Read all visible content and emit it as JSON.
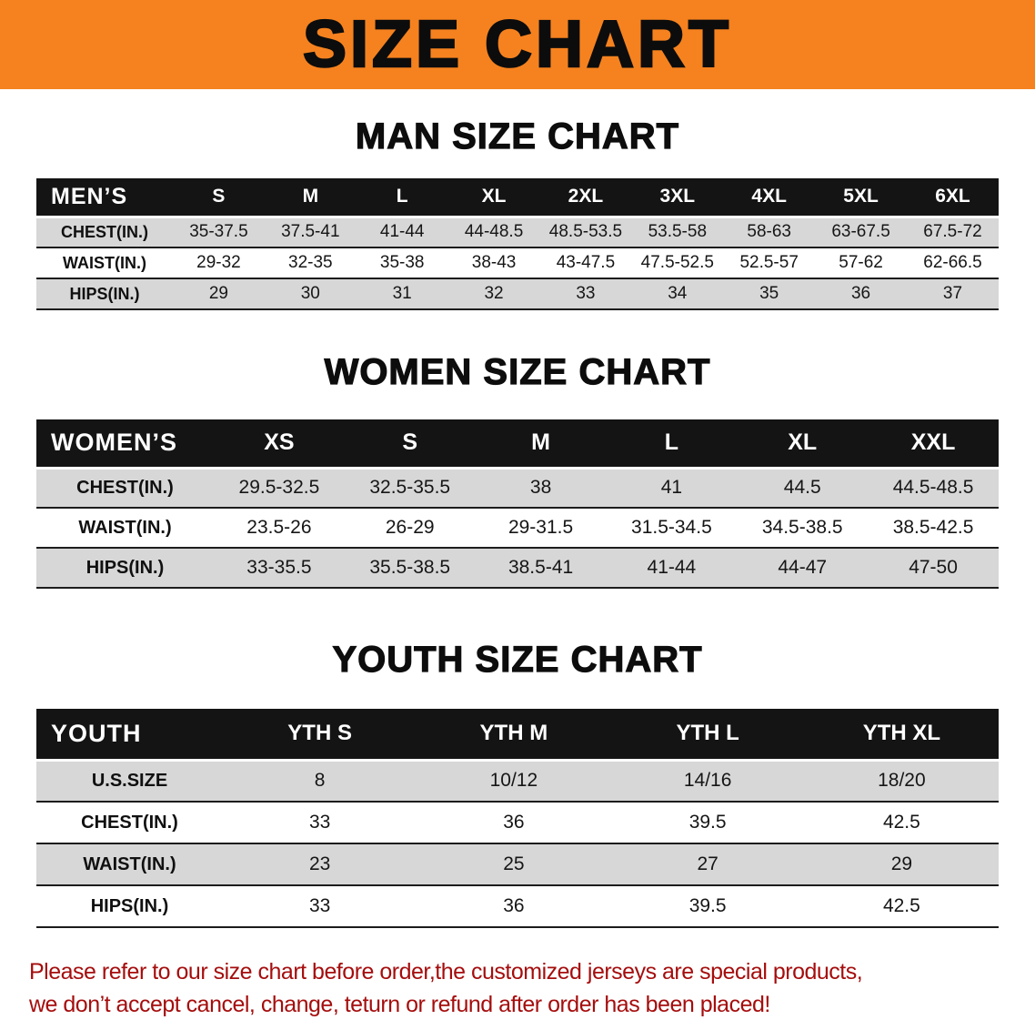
{
  "banner": {
    "title": "SIZE CHART"
  },
  "colors": {
    "banner_bg": "#f5821f",
    "banner_text": "#0c0c0c",
    "table_header_bg": "#141414",
    "row_stripe": "#d7d7d7",
    "disclaimer_text": "#a50d0d"
  },
  "sections": [
    {
      "id": "men",
      "heading": "MAN SIZE CHART",
      "table": {
        "corner_label": "MEN’S",
        "columns": [
          "S",
          "M",
          "L",
          "XL",
          "2XL",
          "3XL",
          "4XL",
          "5XL",
          "6XL"
        ],
        "rows": [
          {
            "label": "CHEST(IN.)",
            "values": [
              "35-37.5",
              "37.5-41",
              "41-44",
              "44-48.5",
              "48.5-53.5",
              "53.5-58",
              "58-63",
              "63-67.5",
              "67.5-72"
            ]
          },
          {
            "label": "WAIST(IN.)",
            "values": [
              "29-32",
              "32-35",
              "35-38",
              "38-43",
              "43-47.5",
              "47.5-52.5",
              "52.5-57",
              "57-62",
              "62-66.5"
            ]
          },
          {
            "label": "HIPS(IN.)",
            "values": [
              "29",
              "30",
              "31",
              "32",
              "33",
              "34",
              "35",
              "36",
              "37"
            ]
          }
        ]
      }
    },
    {
      "id": "women",
      "heading": "WOMEN SIZE CHART",
      "table": {
        "corner_label": "WOMEN’S",
        "columns": [
          "XS",
          "S",
          "M",
          "L",
          "XL",
          "XXL"
        ],
        "rows": [
          {
            "label": "CHEST(IN.)",
            "values": [
              "29.5-32.5",
              "32.5-35.5",
              "38",
              "41",
              "44.5",
              "44.5-48.5"
            ]
          },
          {
            "label": "WAIST(IN.)",
            "values": [
              "23.5-26",
              "26-29",
              "29-31.5",
              "31.5-34.5",
              "34.5-38.5",
              "38.5-42.5"
            ]
          },
          {
            "label": "HIPS(IN.)",
            "values": [
              "33-35.5",
              "35.5-38.5",
              "38.5-41",
              "41-44",
              "44-47",
              "47-50"
            ]
          }
        ]
      }
    },
    {
      "id": "youth",
      "heading": "YOUTH SIZE CHART",
      "table": {
        "corner_label": "YOUTH",
        "columns": [
          "YTH S",
          "YTH M",
          "YTH L",
          "YTH XL"
        ],
        "rows": [
          {
            "label": "U.S.SIZE",
            "values": [
              "8",
              "10/12",
              "14/16",
              "18/20"
            ]
          },
          {
            "label": "CHEST(IN.)",
            "values": [
              "33",
              "36",
              "39.5",
              "42.5"
            ]
          },
          {
            "label": "WAIST(IN.)",
            "values": [
              "23",
              "25",
              "27",
              "29"
            ]
          },
          {
            "label": "HIPS(IN.)",
            "values": [
              "33",
              "36",
              "39.5",
              "42.5"
            ]
          }
        ]
      }
    }
  ],
  "disclaimer": {
    "lines": [
      "Please refer to our size chart before order,the customized jerseys are special products,",
      "we don’t accept cancel, change, teturn or refund after order has been placed!"
    ]
  }
}
